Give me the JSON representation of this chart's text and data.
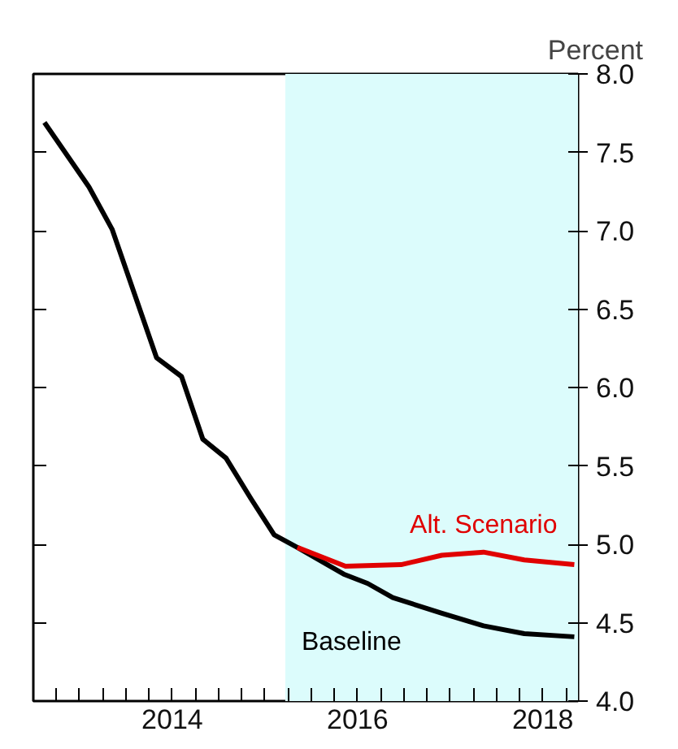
{
  "chart_data": {
    "type": "line",
    "ylabel": "Percent",
    "xlim": [
      2013.0,
      2018.88
    ],
    "ylim": [
      4.0,
      8.0
    ],
    "xticks": [
      {
        "value": 2013.25,
        "label": null
      },
      {
        "value": 2013.5,
        "label": null
      },
      {
        "value": 2013.75,
        "label": null
      },
      {
        "value": 2014,
        "label": null
      },
      {
        "value": 2014.25,
        "label": null
      },
      {
        "value": 2014.5,
        "label": "2014"
      },
      {
        "value": 2014.75,
        "label": null
      },
      {
        "value": 2015,
        "label": null
      },
      {
        "value": 2015.25,
        "label": null
      },
      {
        "value": 2015.5,
        "label": null
      },
      {
        "value": 2015.75,
        "label": null
      },
      {
        "value": 2016,
        "label": null
      },
      {
        "value": 2016.25,
        "label": null
      },
      {
        "value": 2016.5,
        "label": "2016"
      },
      {
        "value": 2016.75,
        "label": null
      },
      {
        "value": 2017,
        "label": null
      },
      {
        "value": 2017.25,
        "label": null
      },
      {
        "value": 2017.5,
        "label": null
      },
      {
        "value": 2017.75,
        "label": null
      },
      {
        "value": 2018,
        "label": null
      },
      {
        "value": 2018.25,
        "label": null
      },
      {
        "value": 2018.5,
        "label": "2018"
      },
      {
        "value": 2018.75,
        "label": null
      }
    ],
    "yticks": [
      {
        "value": 4,
        "label": "4.0"
      },
      4.5,
      {
        "value": 5,
        "label": "5.0"
      },
      5.5,
      {
        "value": 6,
        "label": "6.0"
      },
      6.5,
      {
        "value": 7,
        "label": "7.0"
      },
      7.5,
      {
        "value": 8,
        "label": "8.0"
      }
    ],
    "grid": false,
    "marker": "none",
    "line_style": "solid",
    "bands": [
      {
        "axis": "x",
        "from": 2015.72,
        "to": 2018.88,
        "label": null,
        "color": "#dcfcfc"
      }
    ],
    "series": [
      {
        "name": "Baseline",
        "color": "#000000",
        "x": [
          2013.12,
          2013.6,
          2013.85,
          2014.33,
          2014.6,
          2014.83,
          2015.08,
          2015.35,
          2015.6,
          2015.85,
          2016.35,
          2016.61,
          2016.88,
          2017.41,
          2017.86,
          2018.3,
          2018.84
        ],
        "values": [
          7.69,
          7.28,
          7.01,
          6.19,
          6.07,
          5.67,
          5.55,
          5.29,
          5.06,
          4.98,
          4.81,
          4.75,
          4.66,
          4.56,
          4.48,
          4.43,
          4.41
        ]
      },
      {
        "name": "Alt. Scenario",
        "color": "#e00000",
        "x": [
          2015.85,
          2016.37,
          2016.97,
          2017.41,
          2017.86,
          2018.3,
          2018.84
        ],
        "values": [
          4.98,
          4.86,
          4.87,
          4.93,
          4.95,
          4.9,
          4.87
        ]
      }
    ]
  }
}
